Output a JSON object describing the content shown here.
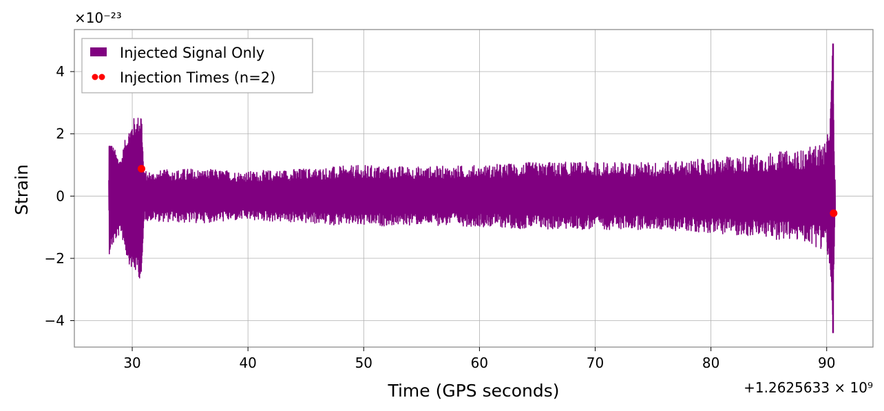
{
  "chart_data": {
    "type": "line",
    "title": "",
    "xlabel": "Time (GPS seconds)",
    "ylabel": "Strain",
    "x_offset_text": "+1.2625633 × 10⁹",
    "y_scale_text": "×10⁻²³",
    "xlim": [
      25,
      94
    ],
    "ylim": [
      -4.85,
      5.35
    ],
    "x_ticks": [
      30,
      40,
      50,
      60,
      70,
      80,
      90
    ],
    "y_ticks": [
      -4,
      -2,
      0,
      2,
      4
    ],
    "x_tick_labels": [
      "30",
      "40",
      "50",
      "60",
      "70",
      "80",
      "90"
    ],
    "y_tick_labels": [
      "−4",
      "−2",
      "0",
      "2",
      "4"
    ],
    "grid": true,
    "legend_position": "top-left",
    "series": [
      {
        "name": "Injected Signal Only",
        "kind": "line",
        "color": "#800080",
        "x_range": [
          28.0,
          90.7
        ],
        "envelope": [
          {
            "x": 28.0,
            "amp": 1.9
          },
          {
            "x": 28.5,
            "amp": 1.5
          },
          {
            "x": 29.0,
            "amp": 1.2
          },
          {
            "x": 29.5,
            "amp": 2.0
          },
          {
            "x": 30.0,
            "amp": 2.5
          },
          {
            "x": 30.5,
            "amp": 2.6
          },
          {
            "x": 30.8,
            "amp": 2.9
          },
          {
            "x": 31.0,
            "amp": 0.8
          },
          {
            "x": 35.0,
            "amp": 0.9
          },
          {
            "x": 40.0,
            "amp": 0.8
          },
          {
            "x": 45.0,
            "amp": 0.9
          },
          {
            "x": 50.0,
            "amp": 1.0
          },
          {
            "x": 55.0,
            "amp": 0.95
          },
          {
            "x": 60.0,
            "amp": 1.0
          },
          {
            "x": 65.0,
            "amp": 1.1
          },
          {
            "x": 70.0,
            "amp": 1.1
          },
          {
            "x": 75.0,
            "amp": 1.1
          },
          {
            "x": 80.0,
            "amp": 1.2
          },
          {
            "x": 85.0,
            "amp": 1.4
          },
          {
            "x": 88.0,
            "amp": 1.5
          },
          {
            "x": 90.0,
            "amp": 1.8
          },
          {
            "x": 90.3,
            "amp": 2.5
          },
          {
            "x": 90.5,
            "amp": 4.9
          },
          {
            "x": 90.7,
            "amp": 0.6
          }
        ],
        "spike": {
          "x": 90.55,
          "max": 4.9,
          "min": -4.4
        }
      },
      {
        "name": "Injection Times (n=2)",
        "kind": "scatter",
        "color": "#ff0000",
        "points": [
          {
            "x": 30.8,
            "y": 0.88
          },
          {
            "x": 90.6,
            "y": -0.55
          }
        ]
      }
    ]
  }
}
